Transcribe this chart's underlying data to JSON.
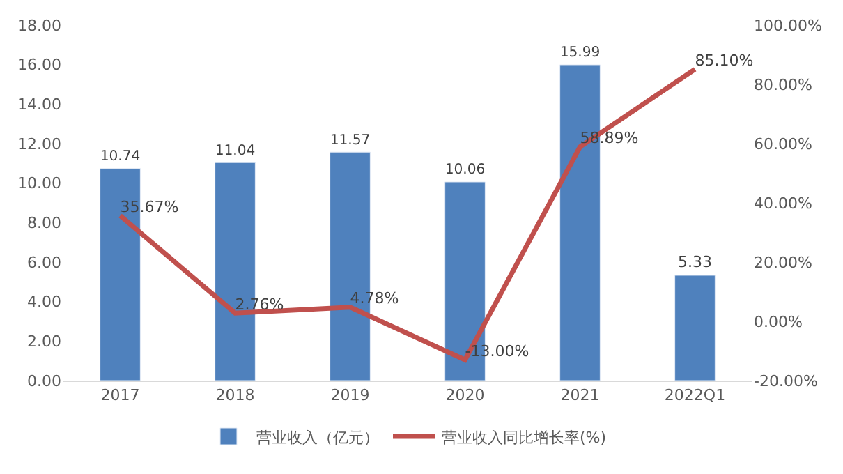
{
  "chart_data": {
    "type": "bar",
    "categories": [
      "2017",
      "2018",
      "2019",
      "2020",
      "2021",
      "2022Q1"
    ],
    "series": [
      {
        "name": "营业收入（亿元）",
        "color": "#4f81bd",
        "values": [
          10.74,
          11.04,
          11.57,
          10.06,
          15.99,
          5.33
        ],
        "value_labels": [
          "10.74",
          "11.04",
          "11.57",
          "10.06",
          "15.99",
          "5.33"
        ]
      },
      {
        "name": "营业收入同比增长率(%)",
        "type": "line",
        "axis": "y2",
        "color": "#c0504d",
        "values": [
          35.67,
          2.76,
          4.78,
          -13.0,
          58.89,
          85.1
        ],
        "value_labels": [
          "35.67%",
          "2.76%",
          "4.78%",
          "-13.00%",
          "58.89%",
          "85.10%"
        ]
      }
    ],
    "ylim": [
      0,
      18
    ],
    "yticks": [
      {
        "value": 0,
        "label": "0.00"
      },
      {
        "value": 2,
        "label": "2.00"
      },
      {
        "value": 4,
        "label": "4.00"
      },
      {
        "value": 6,
        "label": "6.00"
      },
      {
        "value": 8,
        "label": "8.00"
      },
      {
        "value": 10,
        "label": "10.00"
      },
      {
        "value": 12,
        "label": "12.00"
      },
      {
        "value": 14,
        "label": "14.00"
      },
      {
        "value": 16,
        "label": "16.00"
      },
      {
        "value": 18,
        "label": "18.00"
      }
    ],
    "y2lim": [
      -20,
      100
    ],
    "y2ticks": [
      {
        "value": -20,
        "label": "-20.00%"
      },
      {
        "value": 0,
        "label": "0.00%"
      },
      {
        "value": 20,
        "label": "20.00%"
      },
      {
        "value": 40,
        "label": "40.00%"
      },
      {
        "value": 60,
        "label": "60.00%"
      },
      {
        "value": 80,
        "label": "80.00%"
      },
      {
        "value": 100,
        "label": "100.00%"
      }
    ],
    "legend": "bottom",
    "grid": false
  }
}
